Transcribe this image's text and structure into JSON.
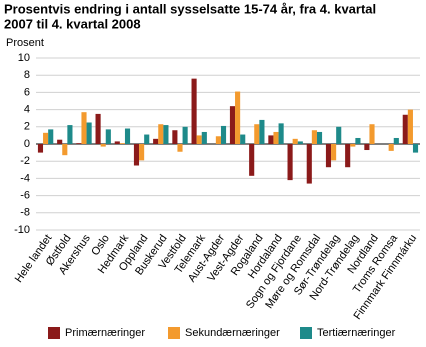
{
  "chart_data": {
    "type": "bar",
    "title": "Prosentvis endring i antall sysselsatte 15-74 år, fra 4. kvartal 2007 til 4. kvartal 2008",
    "y_label": "Prosent",
    "categories": [
      "Hele landet",
      "Østfold",
      "Akershus",
      "Oslo",
      "Hedmark",
      "Oppland",
      "Buskerud",
      "Vestfold",
      "Telemark",
      "Aust-Agder",
      "Vest-Agder",
      "Rogaland",
      "Hordaland",
      "Sogn og Fjordane",
      "Møre og Romsdal",
      "Sør-Trøndelag",
      "Nord-Trøndelag",
      "Nordland",
      "Troms Romsa",
      "Finnmark Finnmárku"
    ],
    "series": [
      {
        "name": "Primærnæringer",
        "color": "#8b1a1a",
        "values": [
          -1.0,
          0.5,
          0.1,
          3.5,
          0.3,
          -2.5,
          0.6,
          1.6,
          7.6,
          0.0,
          4.4,
          -3.7,
          1.0,
          -4.2,
          -4.6,
          -2.7,
          -2.7,
          -0.7,
          0.0,
          3.4
        ]
      },
      {
        "name": "Sekundærnæringer",
        "color": "#f39a2e",
        "values": [
          1.3,
          -1.3,
          3.7,
          -0.3,
          0.1,
          -1.9,
          2.3,
          -0.9,
          1.0,
          0.9,
          6.1,
          2.3,
          1.4,
          0.6,
          1.6,
          -1.9,
          -0.3,
          2.3,
          -0.8,
          4.0
        ]
      },
      {
        "name": "Tertiærnæringer",
        "color": "#1e8a8a",
        "values": [
          1.7,
          2.2,
          2.5,
          1.7,
          1.8,
          1.1,
          2.2,
          2.0,
          1.4,
          2.1,
          1.1,
          2.8,
          2.4,
          0.3,
          1.4,
          2.0,
          0.7,
          0.0,
          0.7,
          -1.0
        ]
      }
    ],
    "ylim": [
      -10,
      10
    ],
    "yticks": [
      -10,
      -8,
      -6,
      -4,
      -2,
      0,
      2,
      4,
      6,
      8,
      10
    ],
    "grid": true,
    "legend": "bottom"
  }
}
